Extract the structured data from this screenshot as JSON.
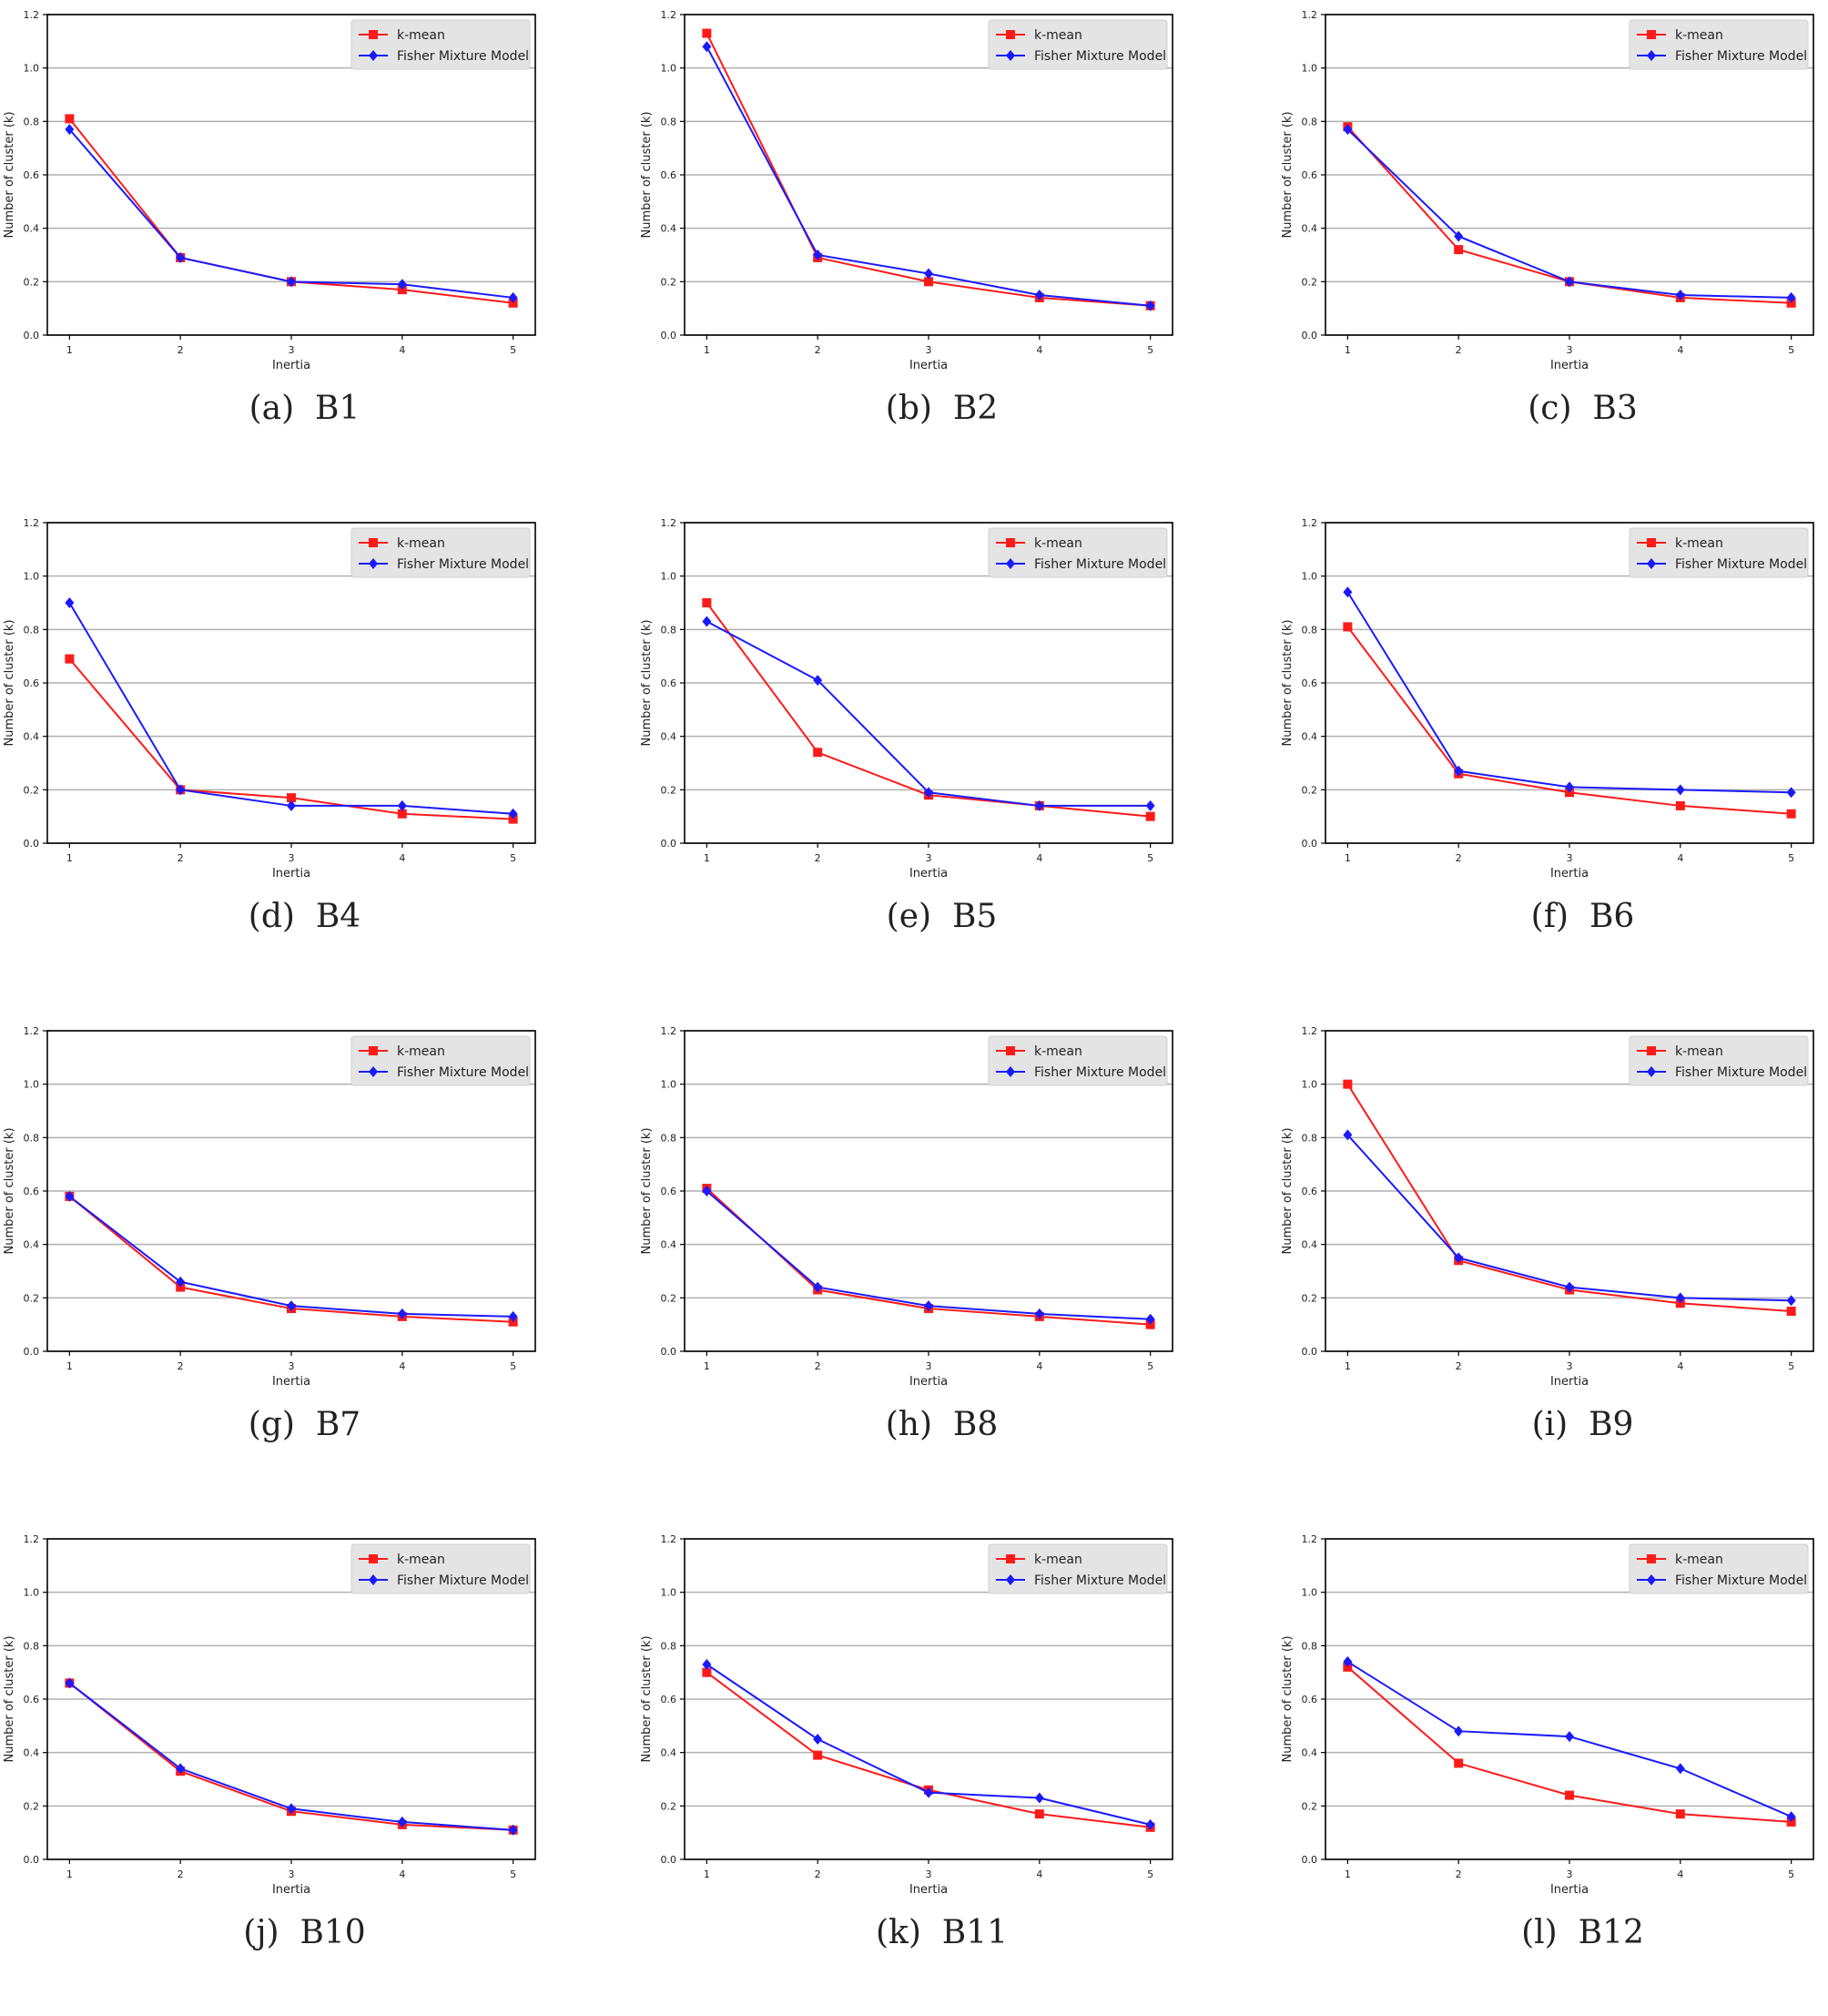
{
  "colors": {
    "kmean": "#ff1a1a",
    "fisher": "#1a1aff",
    "grid": "#b0b0b0"
  },
  "chart_data": [
    {
      "type": "line",
      "label": "(a)",
      "name": "B1",
      "title": "",
      "xlabel": "Inertia",
      "ylabel": "Number of cluster (k)",
      "x": [
        1,
        2,
        3,
        4,
        5
      ],
      "ylim": [
        0,
        1.2
      ],
      "xticks": [
        "1",
        "2",
        "3",
        "4",
        "5"
      ],
      "yticks": [
        "0.0",
        "0.2",
        "0.4",
        "0.6",
        "0.8",
        "1.0",
        "1.2"
      ],
      "legend": "top-right",
      "grid": "y",
      "series": [
        {
          "name": "k-mean",
          "values": [
            0.81,
            0.29,
            0.2,
            0.17,
            0.12
          ]
        },
        {
          "name": "Fisher Mixture Model",
          "values": [
            0.77,
            0.29,
            0.2,
            0.19,
            0.14
          ]
        }
      ]
    },
    {
      "type": "line",
      "label": "(b)",
      "name": "B2",
      "title": "",
      "xlabel": "Inertia",
      "ylabel": "Number of cluster (k)",
      "x": [
        1,
        2,
        3,
        4,
        5
      ],
      "ylim": [
        0,
        1.2
      ],
      "xticks": [
        "1",
        "2",
        "3",
        "4",
        "5"
      ],
      "yticks": [
        "0.0",
        "0.2",
        "0.4",
        "0.6",
        "0.8",
        "1.0",
        "1.2"
      ],
      "legend": "top-right",
      "grid": "y",
      "series": [
        {
          "name": "k-mean",
          "values": [
            1.13,
            0.29,
            0.2,
            0.14,
            0.11
          ]
        },
        {
          "name": "Fisher Mixture Model",
          "values": [
            1.08,
            0.3,
            0.23,
            0.15,
            0.11
          ]
        }
      ]
    },
    {
      "type": "line",
      "label": "(c)",
      "name": "B3",
      "title": "",
      "xlabel": "Inertia",
      "ylabel": "Number of cluster (k)",
      "x": [
        1,
        2,
        3,
        4,
        5
      ],
      "ylim": [
        0,
        1.2
      ],
      "xticks": [
        "1",
        "2",
        "3",
        "4",
        "5"
      ],
      "yticks": [
        "0.0",
        "0.2",
        "0.4",
        "0.6",
        "0.8",
        "1.0",
        "1.2"
      ],
      "legend": "top-right",
      "grid": "y",
      "series": [
        {
          "name": "k-mean",
          "values": [
            0.78,
            0.32,
            0.2,
            0.14,
            0.12
          ]
        },
        {
          "name": "Fisher Mixture Model",
          "values": [
            0.77,
            0.37,
            0.2,
            0.15,
            0.14
          ]
        }
      ]
    },
    {
      "type": "line",
      "label": "(d)",
      "name": "B4",
      "title": "",
      "xlabel": "Inertia",
      "ylabel": "Number of cluster (k)",
      "x": [
        1,
        2,
        3,
        4,
        5
      ],
      "ylim": [
        0,
        1.2
      ],
      "xticks": [
        "1",
        "2",
        "3",
        "4",
        "5"
      ],
      "yticks": [
        "0.0",
        "0.2",
        "0.4",
        "0.6",
        "0.8",
        "1.0",
        "1.2"
      ],
      "legend": "top-right",
      "grid": "y",
      "series": [
        {
          "name": "k-mean",
          "values": [
            0.69,
            0.2,
            0.17,
            0.11,
            0.09
          ]
        },
        {
          "name": "Fisher Mixture Model",
          "values": [
            0.9,
            0.2,
            0.14,
            0.14,
            0.11
          ]
        }
      ]
    },
    {
      "type": "line",
      "label": "(e)",
      "name": "B5",
      "title": "",
      "xlabel": "Inertia",
      "ylabel": "Number of cluster (k)",
      "x": [
        1,
        2,
        3,
        4,
        5
      ],
      "ylim": [
        0,
        1.2
      ],
      "xticks": [
        "1",
        "2",
        "3",
        "4",
        "5"
      ],
      "yticks": [
        "0.0",
        "0.2",
        "0.4",
        "0.6",
        "0.8",
        "1.0",
        "1.2"
      ],
      "legend": "top-right",
      "grid": "y",
      "series": [
        {
          "name": "k-mean",
          "values": [
            0.9,
            0.34,
            0.18,
            0.14,
            0.1
          ]
        },
        {
          "name": "Fisher Mixture Model",
          "values": [
            0.83,
            0.61,
            0.19,
            0.14,
            0.14
          ]
        }
      ]
    },
    {
      "type": "line",
      "label": "(f)",
      "name": "B6",
      "title": "",
      "xlabel": "Inertia",
      "ylabel": "Number of cluster (k)",
      "x": [
        1,
        2,
        3,
        4,
        5
      ],
      "ylim": [
        0,
        1.2
      ],
      "xticks": [
        "1",
        "2",
        "3",
        "4",
        "5"
      ],
      "yticks": [
        "0.0",
        "0.2",
        "0.4",
        "0.6",
        "0.8",
        "1.0",
        "1.2"
      ],
      "legend": "top-right",
      "grid": "y",
      "series": [
        {
          "name": "k-mean",
          "values": [
            0.81,
            0.26,
            0.19,
            0.14,
            0.11
          ]
        },
        {
          "name": "Fisher Mixture Model",
          "values": [
            0.94,
            0.27,
            0.21,
            0.2,
            0.19
          ]
        }
      ]
    },
    {
      "type": "line",
      "label": "(g)",
      "name": "B7",
      "title": "",
      "xlabel": "Inertia",
      "ylabel": "Number of cluster (k)",
      "x": [
        1,
        2,
        3,
        4,
        5
      ],
      "ylim": [
        0,
        1.2
      ],
      "xticks": [
        "1",
        "2",
        "3",
        "4",
        "5"
      ],
      "yticks": [
        "0.0",
        "0.2",
        "0.4",
        "0.6",
        "0.8",
        "1.0",
        "1.2"
      ],
      "legend": "top-right",
      "grid": "y",
      "series": [
        {
          "name": "k-mean",
          "values": [
            0.58,
            0.24,
            0.16,
            0.13,
            0.11
          ]
        },
        {
          "name": "Fisher Mixture Model",
          "values": [
            0.58,
            0.26,
            0.17,
            0.14,
            0.13
          ]
        }
      ]
    },
    {
      "type": "line",
      "label": "(h)",
      "name": "B8",
      "title": "",
      "xlabel": "Inertia",
      "ylabel": "Number of cluster (k)",
      "x": [
        1,
        2,
        3,
        4,
        5
      ],
      "ylim": [
        0,
        1.2
      ],
      "xticks": [
        "1",
        "2",
        "3",
        "4",
        "5"
      ],
      "yticks": [
        "0.0",
        "0.2",
        "0.4",
        "0.6",
        "0.8",
        "1.0",
        "1.2"
      ],
      "legend": "top-right",
      "grid": "y",
      "series": [
        {
          "name": "k-mean",
          "values": [
            0.61,
            0.23,
            0.16,
            0.13,
            0.1
          ]
        },
        {
          "name": "Fisher Mixture Model",
          "values": [
            0.6,
            0.24,
            0.17,
            0.14,
            0.12
          ]
        }
      ]
    },
    {
      "type": "line",
      "label": "(i)",
      "name": "B9",
      "title": "",
      "xlabel": "Inertia",
      "ylabel": "Number of cluster (k)",
      "x": [
        1,
        2,
        3,
        4,
        5
      ],
      "ylim": [
        0,
        1.2
      ],
      "xticks": [
        "1",
        "2",
        "3",
        "4",
        "5"
      ],
      "yticks": [
        "0.0",
        "0.2",
        "0.4",
        "0.6",
        "0.8",
        "1.0",
        "1.2"
      ],
      "legend": "top-right",
      "grid": "y",
      "series": [
        {
          "name": "k-mean",
          "values": [
            1.0,
            0.34,
            0.23,
            0.18,
            0.15
          ]
        },
        {
          "name": "Fisher Mixture Model",
          "values": [
            0.81,
            0.35,
            0.24,
            0.2,
            0.19
          ]
        }
      ]
    },
    {
      "type": "line",
      "label": "(j)",
      "name": "B10",
      "title": "",
      "xlabel": "Inertia",
      "ylabel": "Number of cluster (k)",
      "x": [
        1,
        2,
        3,
        4,
        5
      ],
      "ylim": [
        0,
        1.2
      ],
      "xticks": [
        "1",
        "2",
        "3",
        "4",
        "5"
      ],
      "yticks": [
        "0.0",
        "0.2",
        "0.4",
        "0.6",
        "0.8",
        "1.0",
        "1.2"
      ],
      "legend": "top-right",
      "grid": "y",
      "series": [
        {
          "name": "k-mean",
          "values": [
            0.66,
            0.33,
            0.18,
            0.13,
            0.11
          ]
        },
        {
          "name": "Fisher Mixture Model",
          "values": [
            0.66,
            0.34,
            0.19,
            0.14,
            0.11
          ]
        }
      ]
    },
    {
      "type": "line",
      "label": "(k)",
      "name": "B11",
      "title": "",
      "xlabel": "Inertia",
      "ylabel": "Number of cluster (k)",
      "x": [
        1,
        2,
        3,
        4,
        5
      ],
      "ylim": [
        0,
        1.2
      ],
      "xticks": [
        "1",
        "2",
        "3",
        "4",
        "5"
      ],
      "yticks": [
        "0.0",
        "0.2",
        "0.4",
        "0.6",
        "0.8",
        "1.0",
        "1.2"
      ],
      "legend": "top-right",
      "grid": "y",
      "series": [
        {
          "name": "k-mean",
          "values": [
            0.7,
            0.39,
            0.26,
            0.17,
            0.12
          ]
        },
        {
          "name": "Fisher Mixture Model",
          "values": [
            0.73,
            0.45,
            0.25,
            0.23,
            0.13
          ]
        }
      ]
    },
    {
      "type": "line",
      "label": "(l)",
      "name": "B12",
      "title": "",
      "xlabel": "Inertia",
      "ylabel": "Number of cluster (k)",
      "x": [
        1,
        2,
        3,
        4,
        5
      ],
      "ylim": [
        0,
        1.2
      ],
      "xticks": [
        "1",
        "2",
        "3",
        "4",
        "5"
      ],
      "yticks": [
        "0.0",
        "0.2",
        "0.4",
        "0.6",
        "0.8",
        "1.0",
        "1.2"
      ],
      "legend": "top-right",
      "grid": "y",
      "series": [
        {
          "name": "k-mean",
          "values": [
            0.72,
            0.36,
            0.24,
            0.17,
            0.14
          ]
        },
        {
          "name": "Fisher Mixture Model",
          "values": [
            0.74,
            0.48,
            0.46,
            0.34,
            0.16
          ]
        }
      ]
    }
  ]
}
